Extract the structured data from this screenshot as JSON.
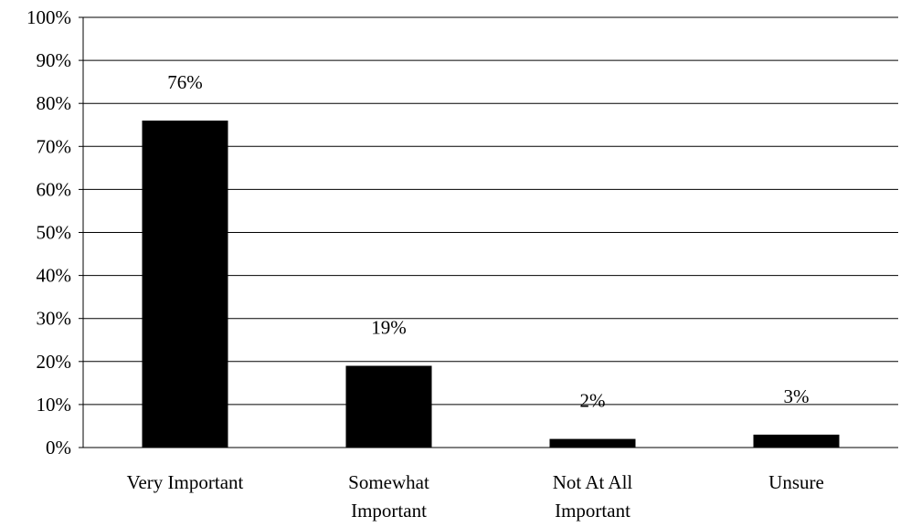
{
  "chart_data": {
    "type": "bar",
    "title": "",
    "xlabel": "",
    "ylabel": "",
    "categories": [
      [
        "Very Important"
      ],
      [
        "Somewhat",
        "Important"
      ],
      [
        "Not At All",
        "Important"
      ],
      [
        "Unsure"
      ]
    ],
    "values": [
      76,
      19,
      2,
      3
    ],
    "data_labels": [
      "76%",
      "19%",
      "2%",
      "3%"
    ],
    "ylim": [
      0,
      100
    ],
    "y_ticks": [
      0,
      10,
      20,
      30,
      40,
      50,
      60,
      70,
      80,
      90,
      100
    ],
    "y_tick_labels": [
      "0%",
      "10%",
      "20%",
      "30%",
      "40%",
      "50%",
      "60%",
      "70%",
      "80%",
      "90%",
      "100%"
    ],
    "grid": true,
    "legend": "none",
    "bar_color": "#000000",
    "grid_color": "#000000"
  }
}
